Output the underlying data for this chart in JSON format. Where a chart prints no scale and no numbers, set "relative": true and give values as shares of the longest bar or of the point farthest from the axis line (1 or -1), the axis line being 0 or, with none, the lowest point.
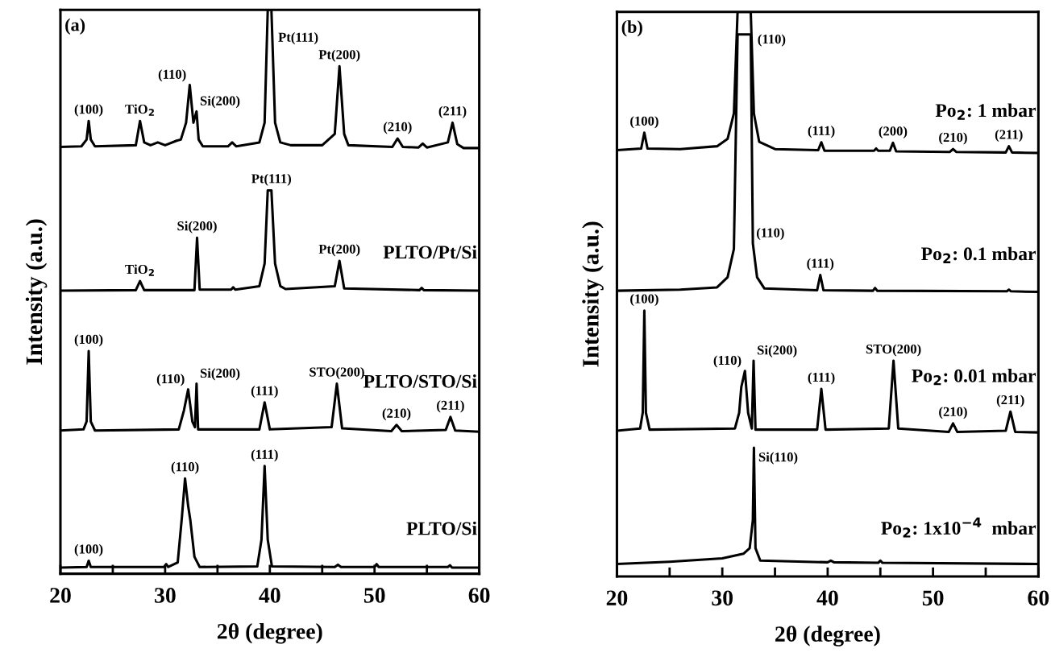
{
  "chart_data": [
    {
      "type": "line",
      "relative": true,
      "xlabel": "2θ (degree)",
      "ylabel": "Intensity (a.u.)",
      "xlim": [
        20,
        60
      ],
      "xticks": [
        20,
        {
          "value": 25,
          "label": null
        },
        30,
        {
          "value": 35,
          "label": null
        },
        40,
        {
          "value": 45,
          "label": null
        },
        50,
        {
          "value": 55,
          "label": null
        },
        60
      ],
      "tick_labels": "x",
      "series": [
        {
          "color": "#000000",
          "x": [
            20,
            22.0,
            22.5,
            22.7,
            22.9,
            23.3,
            27.2,
            27.6,
            28.0,
            28.6,
            29.3,
            30,
            31.1,
            31.5,
            32.0,
            32.35,
            32.7,
            33.0,
            33.2,
            33.6,
            36.0,
            36.4,
            36.8,
            39.0,
            39.5,
            39.8,
            40.15,
            40.5,
            41,
            42,
            45,
            46.2,
            46.65,
            47.1,
            47.5,
            51.7,
            52.2,
            52.7,
            54.2,
            54.6,
            55,
            57.0,
            57.45,
            57.9,
            58.5,
            60
          ],
          "values": [
            0.757,
            0.758,
            0.77,
            0.803,
            0.77,
            0.758,
            0.76,
            0.803,
            0.765,
            0.76,
            0.765,
            0.76,
            0.768,
            0.77,
            0.8,
            0.867,
            0.8,
            0.82,
            0.77,
            0.758,
            0.758,
            0.765,
            0.758,
            0.765,
            0.8,
            1.0,
            1.0,
            0.8,
            0.765,
            0.76,
            0.76,
            0.78,
            0.9,
            0.78,
            0.76,
            0.757,
            0.772,
            0.757,
            0.756,
            0.763,
            0.756,
            0.765,
            0.8,
            0.762,
            0.755,
            0.755
          ]
        },
        {
          "name": "PLTO/Pt/Si",
          "color": "#000000",
          "x": [
            20,
            27.2,
            27.6,
            28,
            32.8,
            33.05,
            33.3,
            36.3,
            36.5,
            36.7,
            39.0,
            39.5,
            39.8,
            40.15,
            40.5,
            41,
            41.5,
            46.2,
            46.65,
            47.1,
            54.3,
            54.5,
            54.7,
            60
          ],
          "values": [
            0.502,
            0.503,
            0.519,
            0.503,
            0.503,
            0.596,
            0.504,
            0.504,
            0.508,
            0.504,
            0.51,
            0.55,
            0.68,
            0.68,
            0.55,
            0.51,
            0.505,
            0.51,
            0.555,
            0.506,
            0.503,
            0.507,
            0.503,
            0.502
          ]
        },
        {
          "name": "PLTO/STO/Si",
          "color": "#000000",
          "x": [
            20,
            22.2,
            22.5,
            22.7,
            22.9,
            23.3,
            31.3,
            31.8,
            32.2,
            32.6,
            32.85,
            33.0,
            33.15,
            39.0,
            39.5,
            40.0,
            45.9,
            46.4,
            46.9,
            51.6,
            52.1,
            52.6,
            56.8,
            57.25,
            57.7,
            60
          ],
          "values": [
            0.254,
            0.256,
            0.27,
            0.395,
            0.27,
            0.254,
            0.256,
            0.29,
            0.327,
            0.27,
            0.26,
            0.337,
            0.256,
            0.256,
            0.304,
            0.256,
            0.26,
            0.337,
            0.258,
            0.253,
            0.264,
            0.253,
            0.255,
            0.278,
            0.254,
            0.252
          ]
        },
        {
          "name": "PLTO/Si",
          "color": "#000000",
          "x": [
            20,
            22.5,
            22.7,
            22.9,
            29.9,
            30.1,
            30.3,
            31.2,
            31.6,
            31.9,
            32.2,
            32.4,
            32.8,
            33.3,
            38.8,
            39.2,
            39.5,
            39.8,
            40.2,
            46.2,
            46.5,
            46.8,
            50.0,
            50.2,
            50.4,
            57.0,
            57.2,
            57.4,
            60
          ],
          "values": [
            0.011,
            0.012,
            0.023,
            0.012,
            0.012,
            0.017,
            0.012,
            0.02,
            0.1,
            0.169,
            0.12,
            0.096,
            0.03,
            0.012,
            0.013,
            0.06,
            0.191,
            0.06,
            0.013,
            0.012,
            0.016,
            0.012,
            0.012,
            0.017,
            0.012,
            0.012,
            0.015,
            0.011,
            0.011
          ]
        }
      ],
      "annotations": [
        "(a)",
        {
          "text": "(100)",
          "x": 22.7,
          "y": 0.803
        },
        {
          "text": "TiO$_{2}$",
          "x": 27.6,
          "y": 0.803
        },
        {
          "text": "(110)",
          "x": 32.35,
          "y": 0.867
        },
        {
          "text": "Si(200)",
          "x": 33.0,
          "y": 0.82
        },
        {
          "text": "Pt(111)",
          "x": 40.15,
          "y": 1.0
        },
        {
          "text": "Pt(200)",
          "x": 46.65,
          "y": 0.9
        },
        {
          "text": "(210)",
          "x": 52.2,
          "y": 0.772
        },
        {
          "text": "(211)",
          "x": 57.45,
          "y": 0.8
        },
        {
          "text": "Pt(111)",
          "x": 40.15,
          "y": 0.68
        },
        {
          "text": "Si(200)",
          "x": 33.05,
          "y": 0.596
        },
        {
          "text": "TiO$_{2}$",
          "x": 27.6,
          "y": 0.519
        },
        {
          "text": "Pt(200)",
          "x": 46.65,
          "y": 0.555
        },
        {
          "text": "(100)",
          "x": 22.7,
          "y": 0.395
        },
        {
          "text": "(110)",
          "x": 32.2,
          "y": 0.327
        },
        {
          "text": "Si(200)",
          "x": 33.0,
          "y": 0.337
        },
        {
          "text": "(111)",
          "x": 39.5,
          "y": 0.304
        },
        {
          "text": "STO(200)",
          "x": 46.4,
          "y": 0.337
        },
        {
          "text": "(210)",
          "x": 52.1,
          "y": 0.264
        },
        {
          "text": "(211)",
          "x": 57.25,
          "y": 0.278
        },
        {
          "text": "(110)",
          "x": 31.9,
          "y": 0.169
        },
        {
          "text": "(111)",
          "x": 39.5,
          "y": 0.191
        },
        {
          "text": "(100)",
          "x": 22.7,
          "y": 0.023
        }
      ]
    },
    {
      "type": "line",
      "relative": true,
      "xlabel": "2θ (degree)",
      "ylabel": "Intensity (a.u.)",
      "xlim": [
        20,
        60
      ],
      "xticks": [
        20,
        {
          "value": 25,
          "label": null
        },
        30,
        {
          "value": 35,
          "label": null
        },
        40,
        {
          "value": 45,
          "label": null
        },
        50,
        {
          "value": 55,
          "label": null
        },
        60
      ],
      "tick_labels": "x",
      "series": [
        {
          "name": "Po$_{2}$: 1 mbar",
          "color": "#000000",
          "x": [
            20,
            22.3,
            22.6,
            22.9,
            26,
            29.5,
            30.5,
            31.1,
            31.45,
            32.7,
            33.0,
            33.5,
            35,
            39.1,
            39.4,
            39.7,
            44.4,
            44.6,
            44.8,
            45.9,
            46.2,
            46.5,
            51.6,
            51.9,
            52.2,
            56.9,
            57.2,
            57.5,
            60
          ],
          "values": [
            0.755,
            0.758,
            0.786,
            0.758,
            0.757,
            0.762,
            0.775,
            0.82,
            1.0,
            1.0,
            0.82,
            0.77,
            0.757,
            0.755,
            0.769,
            0.754,
            0.754,
            0.758,
            0.754,
            0.754,
            0.768,
            0.753,
            0.752,
            0.757,
            0.752,
            0.751,
            0.762,
            0.751,
            0.75
          ]
        },
        {
          "name": "Po$_{2}$: 0.1 mbar",
          "color": "#000000",
          "x": [
            20,
            26,
            29.5,
            30.5,
            31.1,
            31.45,
            32.7,
            32.9,
            33.3,
            34,
            39,
            39.3,
            39.6,
            44.3,
            44.5,
            44.7,
            57.0,
            57.2,
            57.4,
            60
          ],
          "values": [
            0.506,
            0.508,
            0.512,
            0.53,
            0.58,
            0.96,
            0.96,
            0.59,
            0.53,
            0.51,
            0.507,
            0.534,
            0.507,
            0.506,
            0.511,
            0.506,
            0.505,
            0.508,
            0.505,
            0.504
          ]
        },
        {
          "name": "Po$_{2}$: 0.01 mbar",
          "color": "#000000",
          "x": [
            20,
            22.2,
            22.45,
            22.6,
            22.75,
            23.1,
            31.2,
            31.6,
            31.8,
            32.15,
            32.45,
            32.8,
            32.97,
            33.15,
            39.0,
            39.4,
            39.8,
            45.8,
            46.25,
            46.7,
            51.5,
            51.9,
            52.3,
            56.9,
            57.35,
            57.8,
            60
          ],
          "values": [
            0.258,
            0.262,
            0.29,
            0.471,
            0.29,
            0.26,
            0.262,
            0.29,
            0.335,
            0.364,
            0.29,
            0.262,
            0.382,
            0.26,
            0.26,
            0.332,
            0.26,
            0.262,
            0.382,
            0.262,
            0.256,
            0.271,
            0.256,
            0.258,
            0.292,
            0.256,
            0.255
          ]
        },
        {
          "name": "Po$_{2}$: 1x10$^{−4}$  mbar",
          "color": "#000000",
          "x": [
            20,
            25,
            30,
            32.0,
            32.6,
            32.9,
            33.0,
            33.15,
            33.6,
            40,
            40.3,
            40.6,
            44.8,
            45,
            45.2,
            60
          ],
          "values": [
            0.022,
            0.026,
            0.032,
            0.04,
            0.05,
            0.1,
            0.228,
            0.05,
            0.028,
            0.025,
            0.028,
            0.025,
            0.024,
            0.028,
            0.024,
            0.022
          ]
        }
      ],
      "annotations": [
        "(b)",
        {
          "text": "(110)",
          "x": 32.7,
          "y": 1.0
        },
        {
          "text": "(100)",
          "x": 22.6,
          "y": 0.786
        },
        {
          "text": "(111)",
          "x": 39.4,
          "y": 0.769
        },
        {
          "text": "(200)",
          "x": 46.2,
          "y": 0.768
        },
        {
          "text": "(210)",
          "x": 51.9,
          "y": 0.757
        },
        {
          "text": "(211)",
          "x": 57.2,
          "y": 0.762
        },
        {
          "text": "(110)",
          "x": 32.9,
          "y": 0.59
        },
        {
          "text": "(111)",
          "x": 39.3,
          "y": 0.534
        },
        {
          "text": "(100)",
          "x": 22.6,
          "y": 0.471
        },
        {
          "text": "Si(200)",
          "x": 32.97,
          "y": 0.382
        },
        {
          "text": "(110)",
          "x": 32.15,
          "y": 0.364
        },
        {
          "text": "(111)",
          "x": 39.4,
          "y": 0.332
        },
        {
          "text": "STO(200)",
          "x": 46.25,
          "y": 0.382
        },
        {
          "text": "(210)",
          "x": 51.9,
          "y": 0.271
        },
        {
          "text": "(211)",
          "x": 57.35,
          "y": 0.292
        },
        {
          "text": "Si(110)",
          "x": 33.0,
          "y": 0.228
        }
      ]
    }
  ]
}
